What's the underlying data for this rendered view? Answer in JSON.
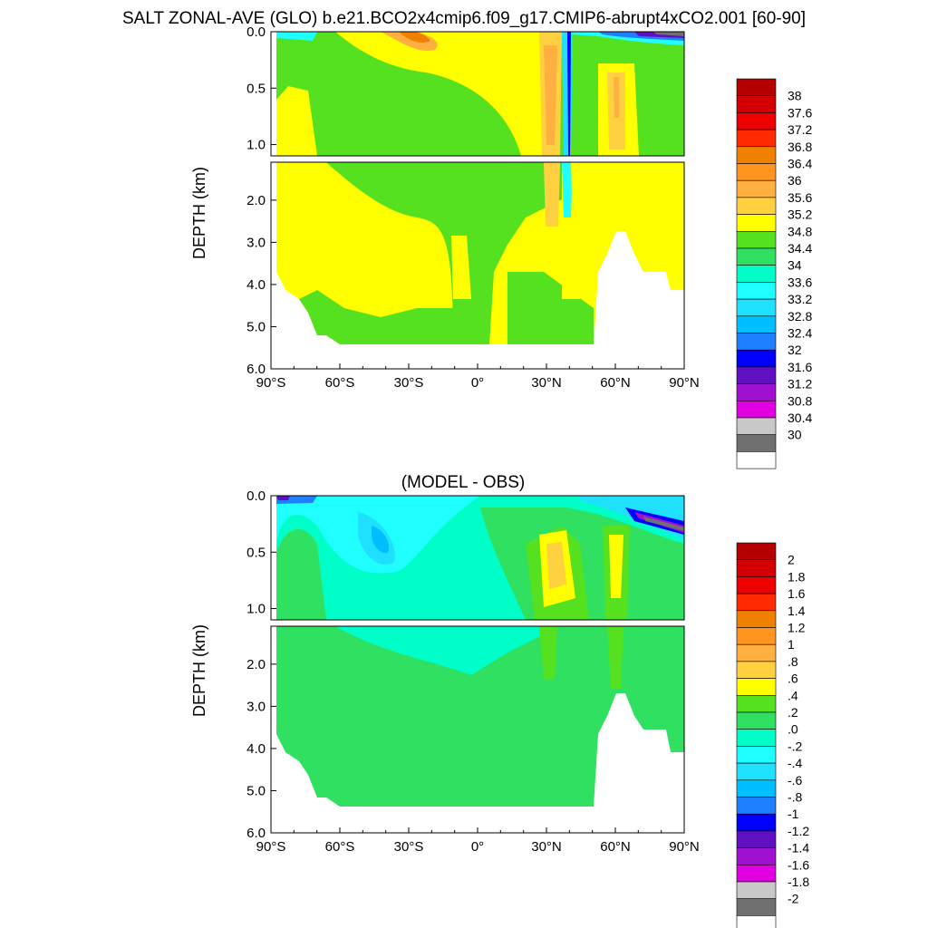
{
  "title": "SALT ZONAL-AVE (GLO) b.e21.BCO2x4cmip6.f09_g17.CMIP6-abrupt4xCO2.001 [60-90]",
  "chart_data": [
    {
      "type": "heatmap",
      "title": "SALT ZONAL-AVE (GLO) b.e21.BCO2x4cmip6.f09_g17.CMIP6-abrupt4xCO2.001 [60-90]",
      "ylabel": "DEPTH (km)",
      "xlabel": "",
      "x_ticks": [
        "90°S",
        "60°S",
        "30°S",
        "0°",
        "30°N",
        "60°N",
        "90°N"
      ],
      "xlim": [
        -90,
        90
      ],
      "y_ticks_upper": [
        "0.0",
        "0.5",
        "1.0"
      ],
      "y_ticks_lower": [
        "2.0",
        "3.0",
        "4.0",
        "5.0",
        "6.0"
      ],
      "ylim": [
        0,
        6
      ],
      "colorbar": {
        "labels": [
          "38",
          "37.6",
          "37.2",
          "36.8",
          "36.4",
          "36",
          "35.6",
          "35.2",
          "34.8",
          "34.4",
          "34",
          "33.6",
          "33.2",
          "32.8",
          "32.4",
          "32",
          "31.6",
          "31.2",
          "30.8",
          "30.4",
          "30"
        ],
        "colors": [
          "#b40000",
          "#d20000",
          "#ee0000",
          "#ff2a00",
          "#f08000",
          "#ff9520",
          "#ffb040",
          "#ffd040",
          "#ffff00",
          "#55e020",
          "#30e060",
          "#00ffc8",
          "#20ffff",
          "#20e0ff",
          "#00bfff",
          "#1e80ff",
          "#0000ff",
          "#6010c0",
          "#a010d0",
          "#e000e0",
          "#c8c8c8",
          "#707070",
          "#ffffff"
        ]
      }
    },
    {
      "type": "heatmap",
      "title": "(MODEL - OBS)",
      "ylabel": "DEPTH (km)",
      "xlabel": "",
      "x_ticks": [
        "90°S",
        "60°S",
        "30°S",
        "0°",
        "30°N",
        "60°N",
        "90°N"
      ],
      "xlim": [
        -90,
        90
      ],
      "y_ticks_upper": [
        "0.0",
        "0.5",
        "1.0"
      ],
      "y_ticks_lower": [
        "2.0",
        "3.0",
        "4.0",
        "5.0",
        "6.0"
      ],
      "ylim": [
        0,
        6
      ],
      "colorbar": {
        "labels": [
          "2",
          "1.8",
          "1.6",
          "1.4",
          "1.2",
          "1",
          ".8",
          ".6",
          ".4",
          ".2",
          ".0",
          "-.2",
          "-.4",
          "-.6",
          "-.8",
          "-1",
          "-1.2",
          "-1.4",
          "-1.6",
          "-1.8",
          "-2"
        ],
        "colors": [
          "#b40000",
          "#d20000",
          "#ee0000",
          "#ff2a00",
          "#f08000",
          "#ff9520",
          "#ffb040",
          "#ffd040",
          "#ffff00",
          "#55e020",
          "#30e060",
          "#00ffc8",
          "#20ffff",
          "#20e0ff",
          "#00bfff",
          "#1e80ff",
          "#0000ff",
          "#6010c0",
          "#a010d0",
          "#e000e0",
          "#c8c8c8",
          "#707070",
          "#ffffff"
        ]
      }
    }
  ]
}
